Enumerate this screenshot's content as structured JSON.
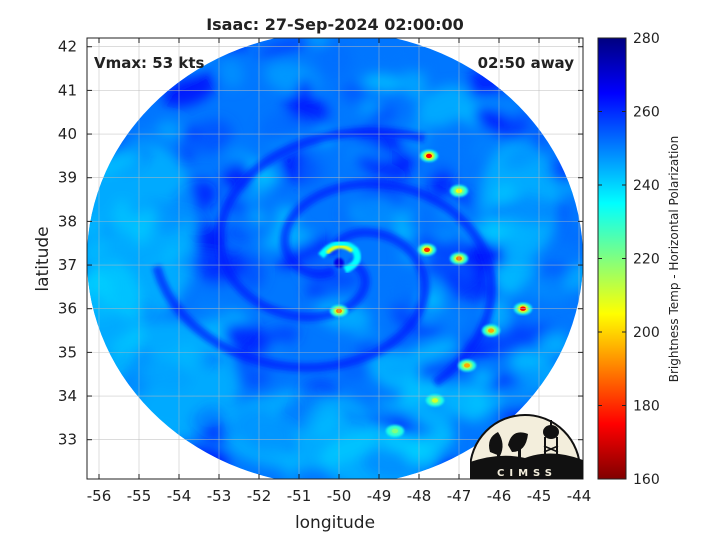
{
  "chart_data": {
    "type": "heatmap",
    "title": "Isaac: 27-Sep-2024 02:00:00",
    "xlabel": "longitude",
    "ylabel": "latitude",
    "xlim": [
      -56.3,
      -43.9
    ],
    "ylim": [
      32.1,
      42.2
    ],
    "xticks": [
      -56,
      -55,
      -54,
      -53,
      -52,
      -51,
      -50,
      -49,
      -48,
      -47,
      -46,
      -45,
      -44
    ],
    "yticks": [
      33,
      34,
      35,
      36,
      37,
      38,
      39,
      40,
      41,
      42
    ],
    "grid": true,
    "annotations": {
      "vmax": "Vmax: 53 kts",
      "away": "02:50 away"
    },
    "colorbar": {
      "label": "Brightness Temp - Horizontal Polarization",
      "range": [
        160,
        280
      ],
      "ticks": [
        160,
        180,
        200,
        220,
        240,
        260,
        280
      ],
      "colors": [
        "#800000",
        "#ff0000",
        "#ffff00",
        "#00ffff",
        "#0000ff",
        "#000080"
      ]
    },
    "swath": {
      "center_lon": -50.1,
      "center_lat": 37.15,
      "background_value": 251
    },
    "features": [
      {
        "name": "eye",
        "lon": -50.0,
        "lat": 37.05,
        "value": 268
      },
      {
        "name": "eyewall",
        "lon": -49.8,
        "lat": 37.3,
        "value": 205
      },
      {
        "name": "inner-band",
        "lon": -50.0,
        "lat": 35.95,
        "value": 190
      },
      {
        "name": "convection",
        "lon": -47.75,
        "lat": 39.5,
        "value": 175
      },
      {
        "name": "convection",
        "lon": -47.8,
        "lat": 37.35,
        "value": 180
      },
      {
        "name": "convection",
        "lon": -47.0,
        "lat": 37.15,
        "value": 190
      },
      {
        "name": "convection",
        "lon": -45.4,
        "lat": 36.0,
        "value": 175
      },
      {
        "name": "convection",
        "lon": -46.2,
        "lat": 35.5,
        "value": 195
      },
      {
        "name": "convection",
        "lon": -46.8,
        "lat": 34.7,
        "value": 195
      },
      {
        "name": "convection",
        "lon": -47.6,
        "lat": 33.9,
        "value": 210
      },
      {
        "name": "convection",
        "lon": -48.6,
        "lat": 33.2,
        "value": 220
      },
      {
        "name": "convection",
        "lon": -47.0,
        "lat": 38.7,
        "value": 205
      }
    ],
    "logo": {
      "text": "CIMSS"
    }
  }
}
